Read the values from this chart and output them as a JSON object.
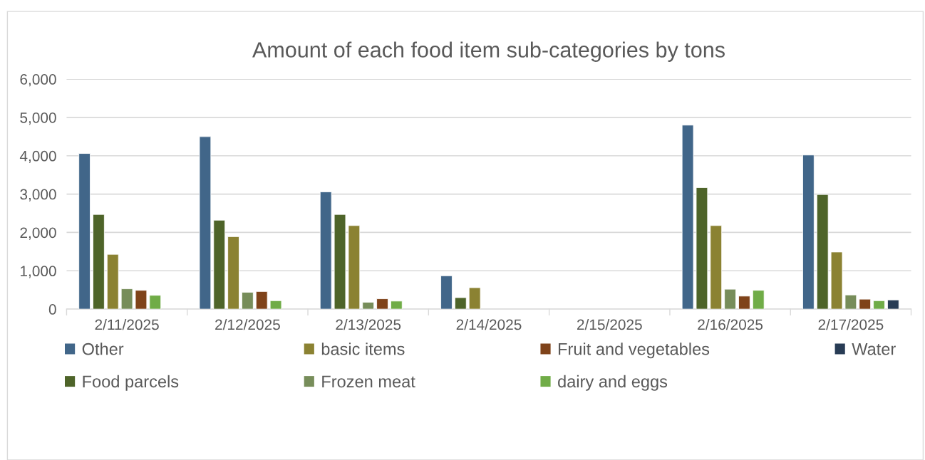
{
  "chart_data": {
    "type": "bar",
    "title": "Amount of each food item sub-categories by tons",
    "categories": [
      "2/11/2025",
      "2/12/2025",
      "2/13/2025",
      "2/14/2025",
      "2/15/2025",
      "2/16/2025",
      "2/17/2025"
    ],
    "series": [
      {
        "name": "Other",
        "color": "#416689",
        "values": [
          4060,
          4500,
          3060,
          870,
          null,
          4800,
          4020
        ]
      },
      {
        "name": "Food parcels",
        "color": "#4e6429",
        "values": [
          2470,
          2320,
          2470,
          300,
          null,
          3170,
          2990
        ]
      },
      {
        "name": "basic items",
        "color": "#8b8232",
        "values": [
          1430,
          1890,
          2180,
          560,
          null,
          2180,
          1490
        ]
      },
      {
        "name": "Frozen meat",
        "color": "#778d5a",
        "values": [
          530,
          440,
          180,
          null,
          null,
          520,
          370
        ]
      },
      {
        "name": "Fruit and vegetables",
        "color": "#7f431a",
        "values": [
          490,
          460,
          270,
          null,
          null,
          340,
          260
        ]
      },
      {
        "name": "dairy and eggs",
        "color": "#70ac47",
        "values": [
          360,
          220,
          210,
          null,
          null,
          490,
          220
        ]
      },
      {
        "name": "Water",
        "color": "#283c55",
        "values": [
          null,
          null,
          null,
          null,
          null,
          null,
          240
        ]
      }
    ],
    "ylim": [
      0,
      6000
    ],
    "yticks": [
      {
        "value": 0,
        "label": "0"
      },
      {
        "value": 1000,
        "label": "1,000"
      },
      {
        "value": 2000,
        "label": "2,000"
      },
      {
        "value": 3000,
        "label": "3,000"
      },
      {
        "value": 4000,
        "label": "4,000"
      },
      {
        "value": 5000,
        "label": "5,000"
      },
      {
        "value": 6000,
        "label": "6,000"
      }
    ],
    "grid": "y",
    "legend": "bottom"
  }
}
